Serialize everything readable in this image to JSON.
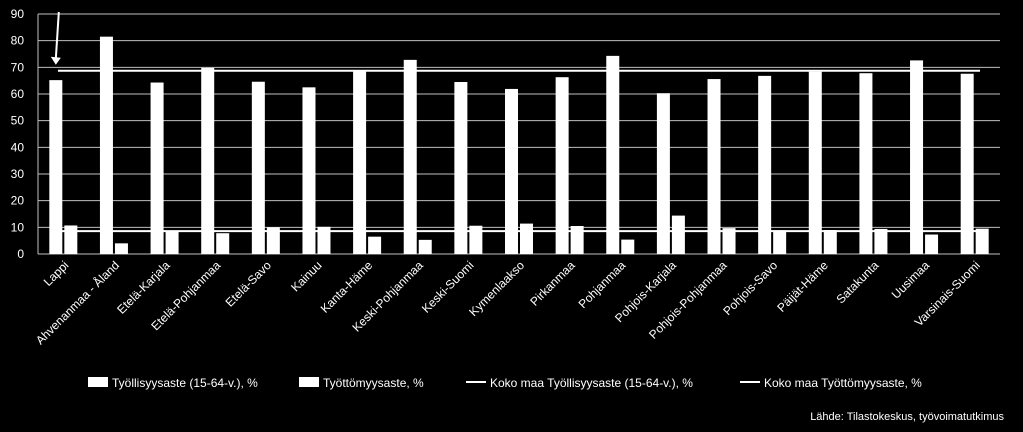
{
  "chart_data": {
    "type": "bar",
    "categories": [
      "Lappi",
      "Ahvenanmaa - Åland",
      "Etelä-Karjala",
      "Etelä-Pohjanmaa",
      "Etelä-Savo",
      "Kainuu",
      "Kanta-Häme",
      "Keski-Pohjanmaa",
      "Keski-Suomi",
      "Kymenlaakso",
      "Pirkanmaa",
      "Pohjanmaa",
      "Pohjois-Karjala",
      "Pohjois-Pohjanmaa",
      "Pohjois-Savo",
      "Päijät-Häme",
      "Satakunta",
      "Uusimaa",
      "Varsinais-Suomi"
    ],
    "series": [
      {
        "name": "Työllisyysaste (15-64-v.), %",
        "values": [
          65.2,
          81.5,
          64.3,
          69.8,
          64.6,
          62.5,
          68.5,
          72.8,
          64.5,
          61.9,
          66.3,
          74.3,
          60.3,
          65.6,
          66.8,
          68.4,
          67.8,
          72.6,
          67.6
        ]
      },
      {
        "name": "Työttömyysaste, %",
        "values": [
          10.7,
          4.0,
          8.6,
          7.8,
          10.0,
          10.2,
          6.5,
          5.3,
          10.6,
          11.4,
          10.5,
          5.4,
          14.4,
          9.7,
          8.9,
          9.0,
          9.4,
          7.3,
          9.5
        ]
      }
    ],
    "reference_lines": [
      {
        "name": "Koko maa Työllisyysaste (15-64-v.), %",
        "value": 68.7
      },
      {
        "name": "Koko maa Työttömyysaste, %",
        "value": 8.6
      }
    ],
    "title": "",
    "xlabel": "",
    "ylabel": "",
    "ylim": [
      0,
      90
    ],
    "yticks": [
      0,
      10,
      20,
      30,
      40,
      50,
      60,
      70,
      80,
      90
    ],
    "grid": true,
    "legend_position": "bottom",
    "annotation": "arrow pointing down at Lappi"
  },
  "source": "Lähde: Tilastokeskus, työvoimatutkimus",
  "colors": {
    "background": "#000000",
    "bars": "#ffffff",
    "gridline": "#bfbfbf",
    "reference": "#ffffff"
  }
}
